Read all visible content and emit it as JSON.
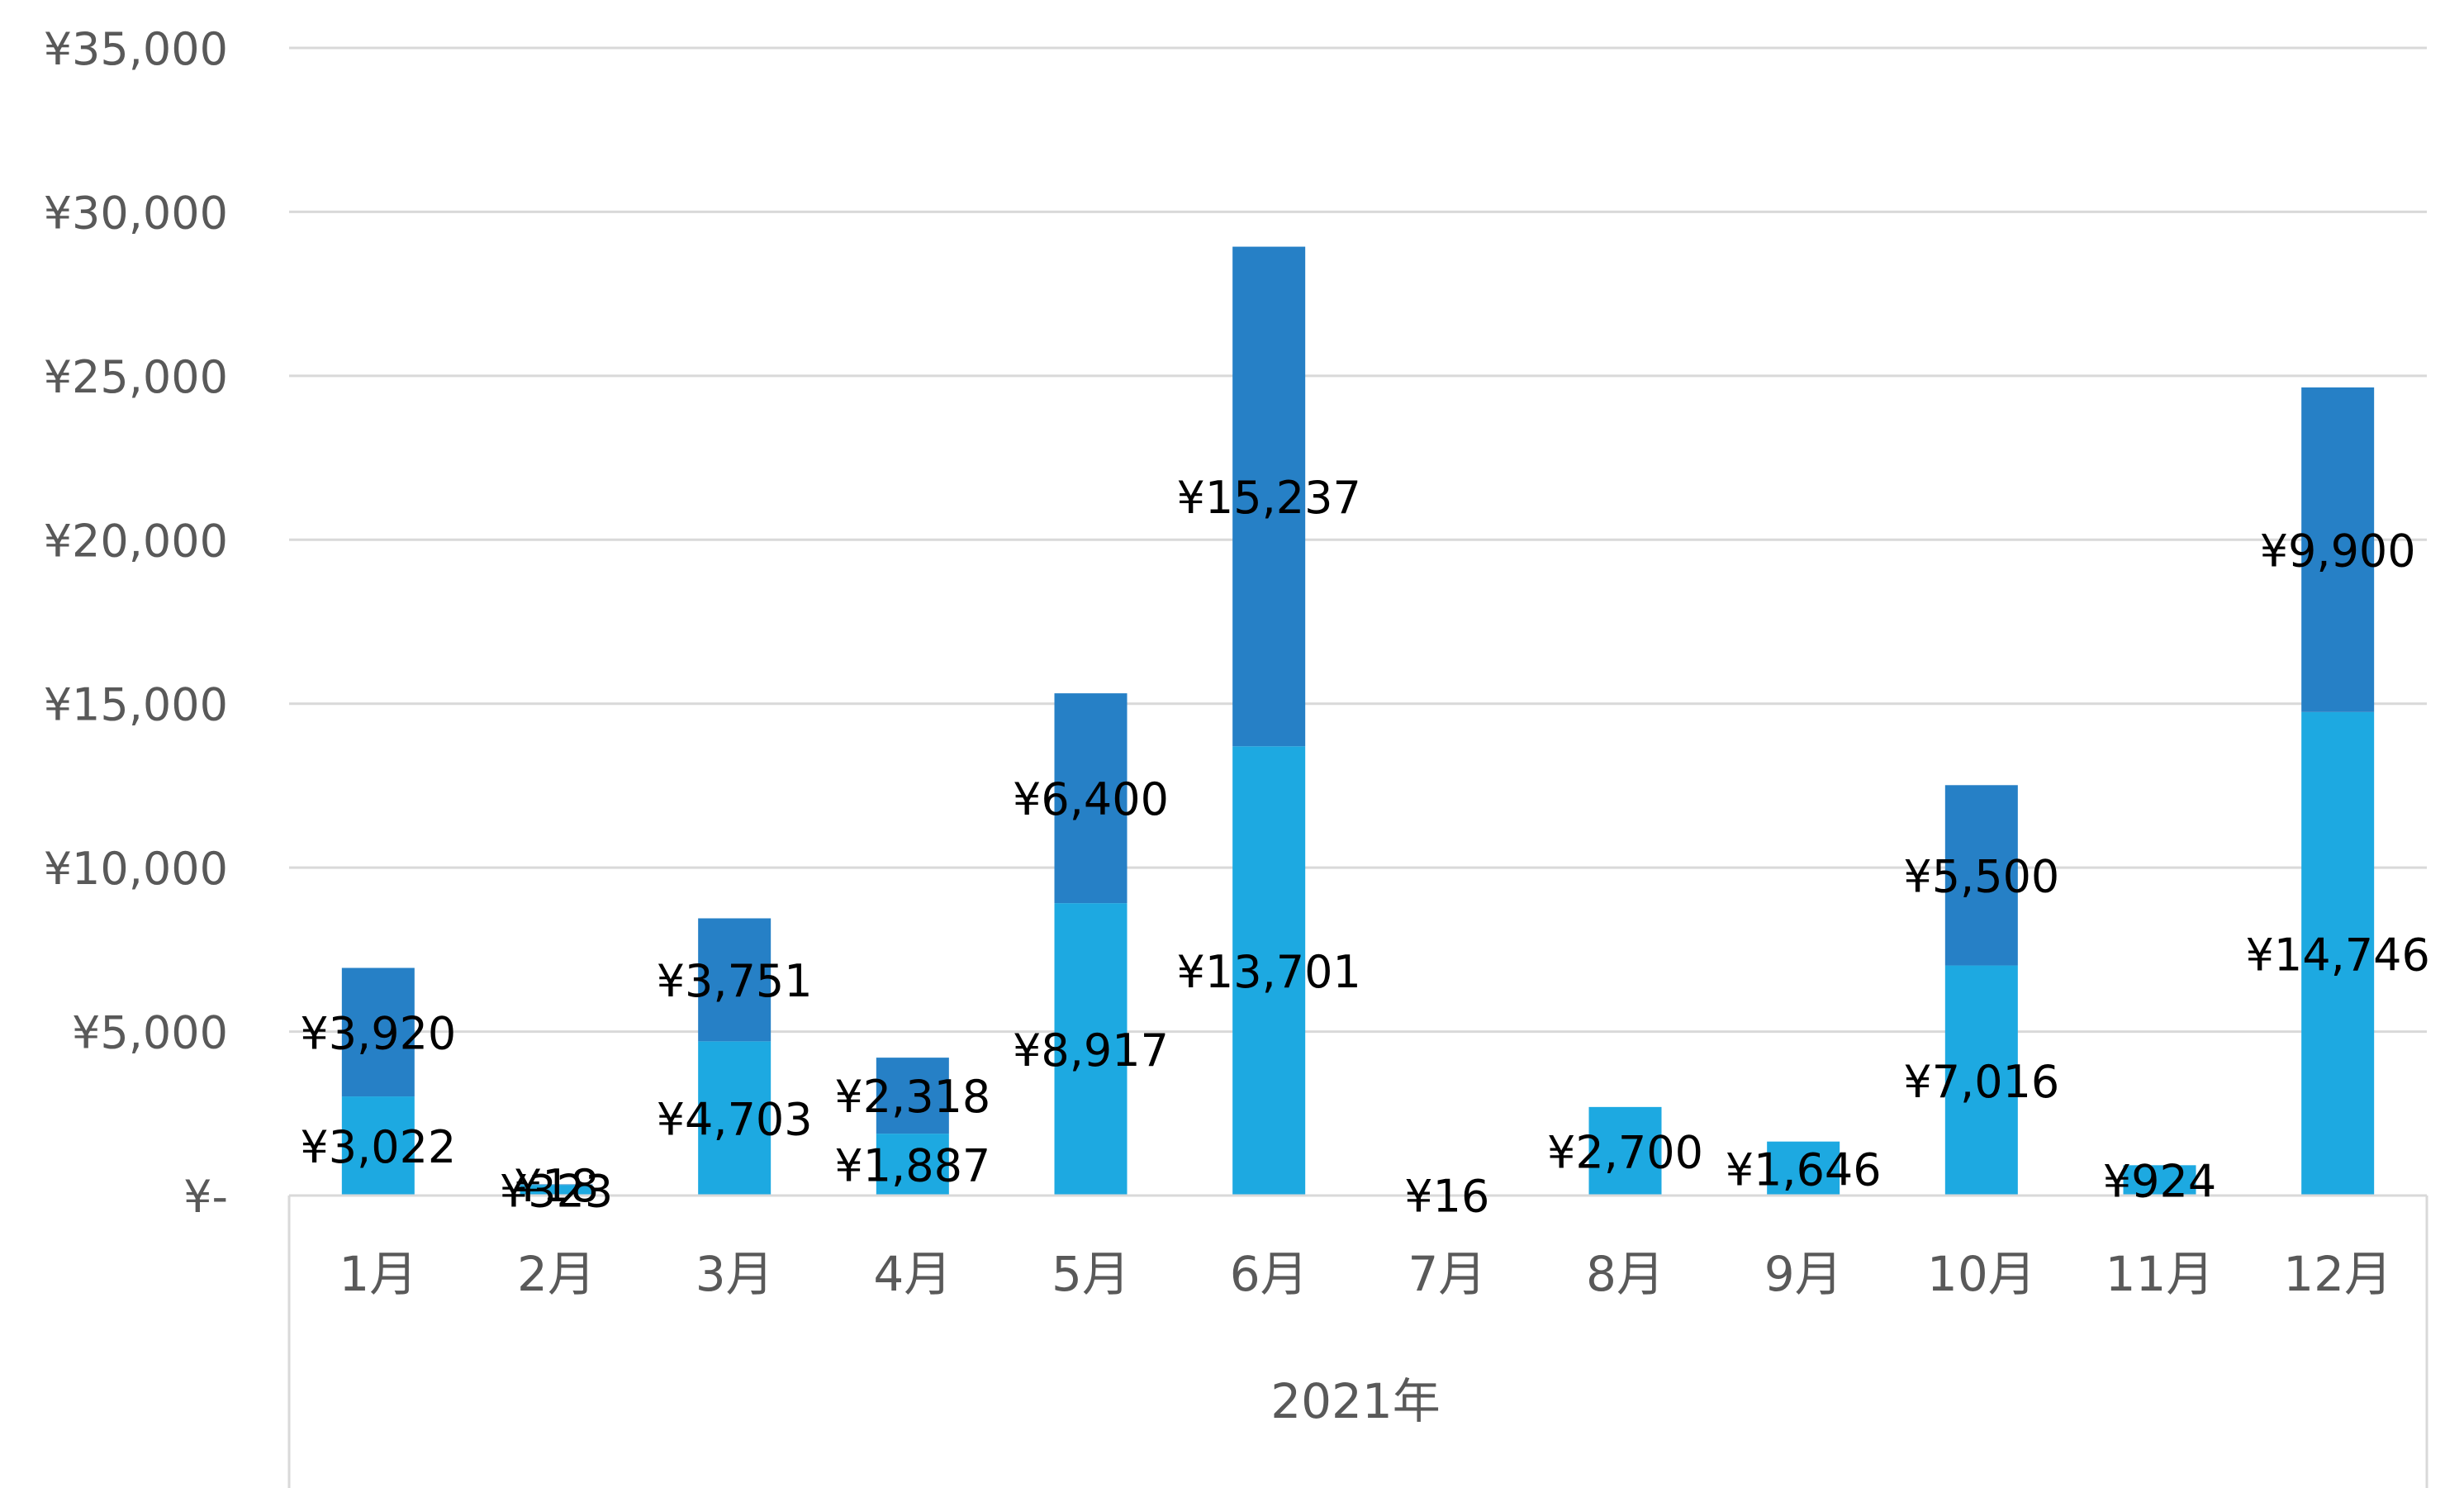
{
  "chart_data": {
    "type": "bar",
    "stacked": true,
    "title": "",
    "xlabel": "",
    "ylabel": "",
    "group_label": "2021年",
    "categories": [
      "1月",
      "2月",
      "3月",
      "4月",
      "5月",
      "6月",
      "7月",
      "8月",
      "9月",
      "10月",
      "11月",
      "12月"
    ],
    "series": [
      {
        "color": "#1DA9E1",
        "values": [
          3022,
          323,
          4703,
          1887,
          8917,
          13701,
          16,
          2700,
          1646,
          7016,
          924,
          14746
        ],
        "labels": [
          "¥3,022",
          "¥323",
          "¥4,703",
          "¥1,887",
          "¥8,917",
          "¥13,701",
          "¥16",
          "¥2,700",
          "¥1,646",
          "¥7,016",
          "¥924",
          "¥14,746"
        ]
      },
      {
        "color": "#2680C6",
        "values": [
          3920,
          18,
          3751,
          2318,
          6400,
          15237,
          0,
          0,
          0,
          5500,
          0,
          9900
        ],
        "labels": [
          "¥3,920",
          "¥18",
          "¥3,751",
          "¥2,318",
          "¥6,400",
          "¥15,237",
          "",
          "",
          "",
          "¥5,500",
          "",
          "¥9,900"
        ]
      }
    ],
    "ylim": [
      0,
      35000
    ],
    "y_ticks": [
      0,
      5000,
      10000,
      15000,
      20000,
      25000,
      30000,
      35000
    ],
    "y_tick_labels": [
      "¥-",
      "¥5,000",
      "¥10,000",
      "¥15,000",
      "¥20,000",
      "¥25,000",
      "¥30,000",
      "¥35,000"
    ],
    "grid": true,
    "legend": "none"
  },
  "colors": {
    "grid": "#D9D9D9",
    "axis_text": "#595959",
    "label_text": "#000000"
  }
}
